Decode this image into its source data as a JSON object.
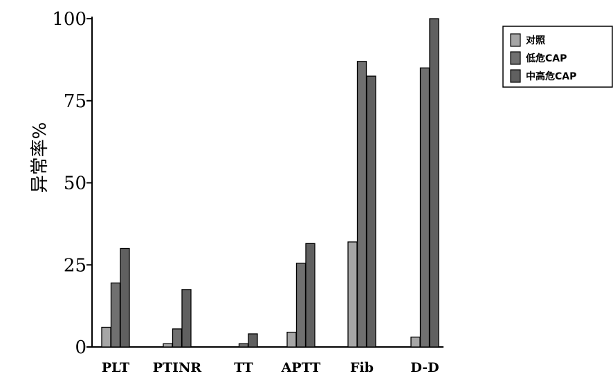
{
  "chart_data": {
    "type": "bar",
    "categories": [
      "PLT",
      "PTINR",
      "TT",
      "APTT",
      "Fib",
      "D-D"
    ],
    "series": [
      {
        "name": "对照",
        "color": "#a6a6a6",
        "values": [
          6,
          1,
          0,
          4.5,
          32,
          3
        ]
      },
      {
        "name": "低危CAP",
        "color": "#707070",
        "values": [
          19.5,
          5.5,
          1,
          25.5,
          87,
          85
        ]
      },
      {
        "name": "中高危CAP",
        "color": "#606060",
        "values": [
          30,
          17.5,
          4,
          31.5,
          82.5,
          100
        ]
      }
    ],
    "ylabel": "异常率%",
    "xlabel": "",
    "ylim": [
      0,
      100
    ],
    "yticks": [
      0,
      25,
      50,
      75,
      100
    ],
    "legend_position": "top-right",
    "grid": false
  }
}
